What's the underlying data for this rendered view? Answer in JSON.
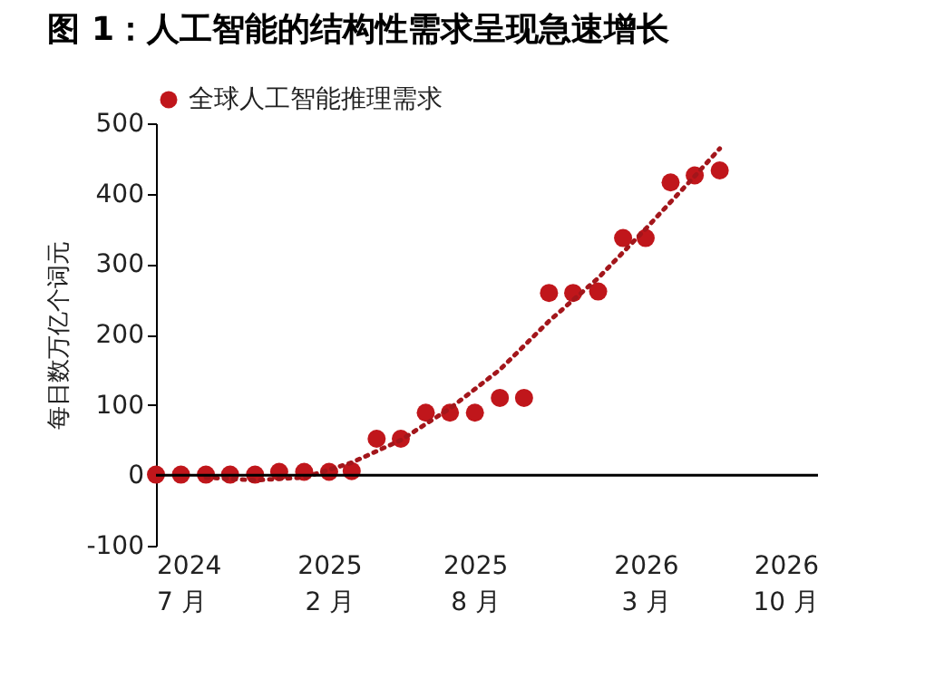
{
  "chart_data": {
    "type": "scatter",
    "title": "图 1：人工智能的结构性需求呈现急速增长",
    "ylabel": "每日数万亿个词元",
    "x": [
      "2024-07",
      "2024-08",
      "2024-09",
      "2024-10",
      "2024-11",
      "2024-12",
      "2025-01",
      "2025-02",
      "2025-03",
      "2025-04",
      "2025-05",
      "2025-06",
      "2025-07",
      "2025-08",
      "2025-09",
      "2025-10",
      "2025-11",
      "2025-12",
      "2026-01",
      "2026-02",
      "2026-03",
      "2026-04",
      "2026-05",
      "2026-06"
    ],
    "series": [
      {
        "name": "全球人工智能推理需求",
        "color": "#c0161b",
        "marker": "circle",
        "values": [
          1,
          1,
          1,
          1,
          1,
          5,
          5,
          5,
          6,
          52,
          52,
          89,
          89,
          89,
          110,
          110,
          259,
          259,
          261,
          337,
          337,
          416,
          426,
          433
        ]
      },
      {
        "type": "line",
        "color": "#a3161b",
        "line_style": "dotted",
        "marker": "none",
        "x": [
          "2024-09",
          "2024-11",
          "2025-01",
          "2025-03",
          "2025-05",
          "2025-07",
          "2025-09",
          "2025-11",
          "2026-01",
          "2026-03",
          "2026-05",
          "2026-06"
        ],
        "values": [
          -3,
          -7,
          -3,
          18,
          50,
          95,
          150,
          219,
          280,
          350,
          425,
          464
        ]
      }
    ],
    "xlim": [
      "2024-07",
      "2026-10"
    ],
    "xticks": [
      {
        "value": "2024-07",
        "label": "2024\n7 月"
      },
      {
        "value": "2025-02",
        "label": "2025\n2 月"
      },
      {
        "value": "2025-08",
        "label": "2025\n8 月"
      },
      {
        "value": "2026-03",
        "label": "2026\n3 月"
      },
      {
        "value": "2026-10",
        "label": "2026\n10 月"
      }
    ],
    "ylim": [
      -100,
      500
    ],
    "yticks": [
      -100,
      0,
      100,
      200,
      300,
      400,
      500
    ],
    "ref_lines": [
      {
        "axis": "y",
        "value": 0
      }
    ],
    "legend": "top",
    "grid": false
  }
}
